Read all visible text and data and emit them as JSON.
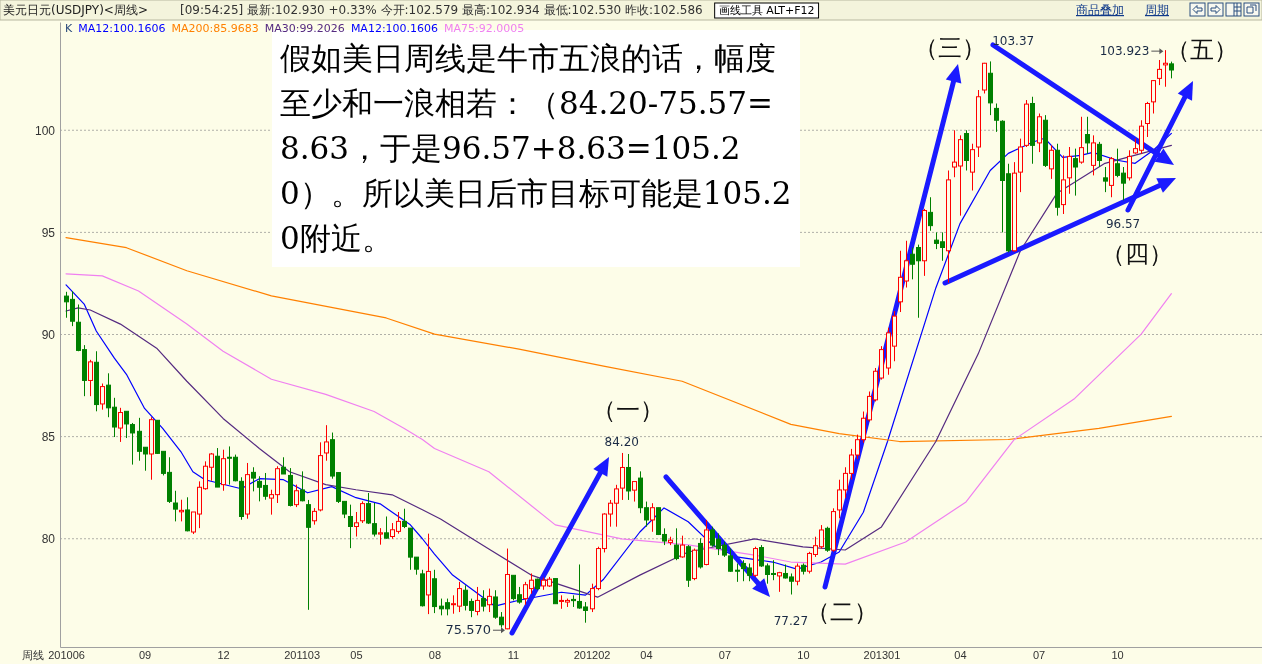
{
  "chart_data": {
    "type": "candlestick",
    "title": "美元日元(USDJPY)<周线>",
    "subtitle": "[09:54:25] 最新:102.930 +0.33% 今开:102.579 最高:102.934 最低:102.530 昨收:102.586",
    "xlabel": "周线",
    "xlim": [
      "2010-05-28",
      "2014-03-21"
    ],
    "ylim": [
      74.7,
      105.3
    ],
    "xticks": [
      {
        "value": "2010-06-04",
        "label": "201006"
      },
      {
        "value": "2010-09-03",
        "label": "09"
      },
      {
        "value": "2010-12-03",
        "label": "12"
      },
      {
        "value": "2011-03-04",
        "label": "201103"
      },
      {
        "value": "2011-05-06",
        "label": "05"
      },
      {
        "value": "2011-08-05",
        "label": "08"
      },
      {
        "value": "2011-11-04",
        "label": "11"
      },
      {
        "value": "2012-02-03",
        "label": "201202"
      },
      {
        "value": "2012-04-06",
        "label": "04"
      },
      {
        "value": "2012-07-06",
        "label": "07"
      },
      {
        "value": "2012-10-05",
        "label": "10"
      },
      {
        "value": "2013-01-04",
        "label": "201301"
      },
      {
        "value": "2013-04-05",
        "label": "04"
      },
      {
        "value": "2013-07-05",
        "label": "07"
      },
      {
        "value": "2013-10-04",
        "label": "10"
      }
    ],
    "yticks": [
      80,
      85,
      90,
      95,
      100
    ],
    "grid": "y",
    "legend": "top left",
    "x": [
      "2010-06-04",
      "2010-06-11",
      "2010-06-18",
      "2010-06-25",
      "2010-07-02",
      "2010-07-09",
      "2010-07-16",
      "2010-07-23",
      "2010-07-30",
      "2010-08-06",
      "2010-08-13",
      "2010-08-20",
      "2010-08-27",
      "2010-09-03",
      "2010-09-10",
      "2010-09-17",
      "2010-09-24",
      "2010-10-01",
      "2010-10-08",
      "2010-10-15",
      "2010-10-22",
      "2010-10-29",
      "2010-11-05",
      "2010-11-12",
      "2010-11-19",
      "2010-11-26",
      "2010-12-03",
      "2010-12-10",
      "2010-12-17",
      "2010-12-24",
      "2010-12-31",
      "2011-01-07",
      "2011-01-14",
      "2011-01-21",
      "2011-01-28",
      "2011-02-04",
      "2011-02-11",
      "2011-02-18",
      "2011-02-25",
      "2011-03-04",
      "2011-03-11",
      "2011-03-18",
      "2011-03-25",
      "2011-04-01",
      "2011-04-08",
      "2011-04-15",
      "2011-04-22",
      "2011-04-29",
      "2011-05-06",
      "2011-05-13",
      "2011-05-20",
      "2011-05-27",
      "2011-06-03",
      "2011-06-10",
      "2011-06-17",
      "2011-06-24",
      "2011-07-01",
      "2011-07-08",
      "2011-07-15",
      "2011-07-22",
      "2011-07-29",
      "2011-08-05",
      "2011-08-12",
      "2011-08-19",
      "2011-08-26",
      "2011-09-02",
      "2011-09-09",
      "2011-09-16",
      "2011-09-23",
      "2011-09-30",
      "2011-10-07",
      "2011-10-14",
      "2011-10-21",
      "2011-10-28",
      "2011-11-04",
      "2011-11-11",
      "2011-11-18",
      "2011-11-25",
      "2011-12-02",
      "2011-12-09",
      "2011-12-16",
      "2011-12-23",
      "2011-12-30",
      "2012-01-06",
      "2012-01-13",
      "2012-01-20",
      "2012-01-27",
      "2012-02-03",
      "2012-02-10",
      "2012-02-17",
      "2012-02-24",
      "2012-03-02",
      "2012-03-09",
      "2012-03-16",
      "2012-03-23",
      "2012-03-30",
      "2012-04-06",
      "2012-04-13",
      "2012-04-20",
      "2012-04-27",
      "2012-05-04",
      "2012-05-11",
      "2012-05-18",
      "2012-05-25",
      "2012-06-01",
      "2012-06-08",
      "2012-06-15",
      "2012-06-22",
      "2012-06-29",
      "2012-07-06",
      "2012-07-13",
      "2012-07-20",
      "2012-07-27",
      "2012-08-03",
      "2012-08-10",
      "2012-08-17",
      "2012-08-24",
      "2012-08-31",
      "2012-09-07",
      "2012-09-14",
      "2012-09-21",
      "2012-09-28",
      "2012-10-05",
      "2012-10-12",
      "2012-10-19",
      "2012-10-26",
      "2012-11-02",
      "2012-11-09",
      "2012-11-16",
      "2012-11-23",
      "2012-11-30",
      "2012-12-07",
      "2012-12-14",
      "2012-12-21",
      "2012-12-28",
      "2013-01-04",
      "2013-01-11",
      "2013-01-18",
      "2013-01-25",
      "2013-02-01",
      "2013-02-08",
      "2013-02-15",
      "2013-02-22",
      "2013-03-01",
      "2013-03-08",
      "2013-03-15",
      "2013-03-22",
      "2013-03-29",
      "2013-04-05",
      "2013-04-12",
      "2013-04-19",
      "2013-04-26",
      "2013-05-03",
      "2013-05-10",
      "2013-05-17",
      "2013-05-24",
      "2013-05-31",
      "2013-06-07",
      "2013-06-14",
      "2013-06-21",
      "2013-06-28",
      "2013-07-05",
      "2013-07-12",
      "2013-07-19",
      "2013-07-26",
      "2013-08-02",
      "2013-08-09",
      "2013-08-16",
      "2013-08-23",
      "2013-08-30",
      "2013-09-06",
      "2013-09-13",
      "2013-09-20",
      "2013-09-27",
      "2013-10-04",
      "2013-10-11",
      "2013-10-18",
      "2013-10-25",
      "2013-11-01",
      "2013-11-08",
      "2013-11-15",
      "2013-11-22",
      "2013-11-29",
      "2013-12-06"
    ],
    "ohlc": [
      [
        91.88,
        92.09,
        90.82,
        91.6
      ],
      [
        91.72,
        92.12,
        90.41,
        90.65
      ],
      [
        90.6,
        91.47,
        89.18,
        89.22
      ],
      [
        89.26,
        89.48,
        86.98,
        87.75
      ],
      [
        87.75,
        88.76,
        86.98,
        88.66
      ],
      [
        88.64,
        89.18,
        86.24,
        86.57
      ],
      [
        86.6,
        87.6,
        86.32,
        87.45
      ],
      [
        87.52,
        88.1,
        85.95,
        86.41
      ],
      [
        86.44,
        86.9,
        84.98,
        85.47
      ],
      [
        85.42,
        86.41,
        84.74,
        86.18
      ],
      [
        86.24,
        86.24,
        84.93,
        85.62
      ],
      [
        85.59,
        85.67,
        83.63,
        85.18
      ],
      [
        85.26,
        85.92,
        83.82,
        84.28
      ],
      [
        84.48,
        84.48,
        83.33,
        84.15
      ],
      [
        84.15,
        85.95,
        82.89,
        85.83
      ],
      [
        85.8,
        85.8,
        84.15,
        84.18
      ],
      [
        84.28,
        84.28,
        83.1,
        83.2
      ],
      [
        83.25,
        83.99,
        81.75,
        81.83
      ],
      [
        81.75,
        82.35,
        80.85,
        81.45
      ],
      [
        81.32,
        81.91,
        80.85,
        81.39
      ],
      [
        81.41,
        82.03,
        80.36,
        80.39
      ],
      [
        80.33,
        81.31,
        80.23,
        81.31
      ],
      [
        81.21,
        82.81,
        80.52,
        82.52
      ],
      [
        82.45,
        83.79,
        82.4,
        83.55
      ],
      [
        83.5,
        84.2,
        82.84,
        84.15
      ],
      [
        84.04,
        84.44,
        82.53,
        82.53
      ],
      [
        82.65,
        84.36,
        82.35,
        83.92
      ],
      [
        83.99,
        84.52,
        82.65,
        83.95
      ],
      [
        83.99,
        84.12,
        82.81,
        82.84
      ],
      [
        82.81,
        83.01,
        80.93,
        81.09
      ],
      [
        81.21,
        83.71,
        80.98,
        83.14
      ],
      [
        83.25,
        83.5,
        82.32,
        82.97
      ],
      [
        82.81,
        83.06,
        81.83,
        82.52
      ],
      [
        82.61,
        83.22,
        81.91,
        82.08
      ],
      [
        81.99,
        82.4,
        81.18,
        82.16
      ],
      [
        82.16,
        83.55,
        81.75,
        83.43
      ],
      [
        83.5,
        83.99,
        83.17,
        83.17
      ],
      [
        83.1,
        83.46,
        81.58,
        81.63
      ],
      [
        81.67,
        82.65,
        81.55,
        82.35
      ],
      [
        82.39,
        83.3,
        81.83,
        81.86
      ],
      [
        81.67,
        81.9,
        76.52,
        80.56
      ],
      [
        80.88,
        81.5,
        80.69,
        81.34
      ],
      [
        81.41,
        84.72,
        81.34,
        84.07
      ],
      [
        84.2,
        85.56,
        83.82,
        84.74
      ],
      [
        84.85,
        85.2,
        82.94,
        83.07
      ],
      [
        83.24,
        83.24,
        81.75,
        81.83
      ],
      [
        81.83,
        81.83,
        81.01,
        81.21
      ],
      [
        81.09,
        81.67,
        79.54,
        80.6
      ],
      [
        80.6,
        81.31,
        80.11,
        80.78
      ],
      [
        80.88,
        81.83,
        80.77,
        81.72
      ],
      [
        81.72,
        82.24,
        80.72,
        80.77
      ],
      [
        80.74,
        81.75,
        80.11,
        80.23
      ],
      [
        80.23,
        80.52,
        79.71,
        80.29
      ],
      [
        80.29,
        81.09,
        80.0,
        80.03
      ],
      [
        80.11,
        80.77,
        80.0,
        80.44
      ],
      [
        80.36,
        81.31,
        80.25,
        80.85
      ],
      [
        80.85,
        81.47,
        80.52,
        80.6
      ],
      [
        80.52,
        80.52,
        78.48,
        79.1
      ],
      [
        79.1,
        79.1,
        78.24,
        78.51
      ],
      [
        78.28,
        78.48,
        76.68,
        76.72
      ],
      [
        77.25,
        80.25,
        76.31,
        78.4
      ],
      [
        78.04,
        78.48,
        76.36,
        76.68
      ],
      [
        76.7,
        77.07,
        76.25,
        76.57
      ],
      [
        76.87,
        77.07,
        76.25,
        76.57
      ],
      [
        76.77,
        77.23,
        76.33,
        76.82
      ],
      [
        76.7,
        77.89,
        76.41,
        77.56
      ],
      [
        77.48,
        77.72,
        76.49,
        76.74
      ],
      [
        76.93,
        77.07,
        76.16,
        76.49
      ],
      [
        76.44,
        77.64,
        76.25,
        76.98
      ],
      [
        77.07,
        77.48,
        76.44,
        76.7
      ],
      [
        76.77,
        77.56,
        76.41,
        77.18
      ],
      [
        77.15,
        77.48,
        76.08,
        76.16
      ],
      [
        76.16,
        76.41,
        75.65,
        75.79
      ],
      [
        75.59,
        79.52,
        75.57,
        78.25
      ],
      [
        78.21,
        78.21,
        76.98,
        77.07
      ],
      [
        77.26,
        77.64,
        76.82,
        76.9
      ],
      [
        77.07,
        77.89,
        76.77,
        77.75
      ],
      [
        77.56,
        78.3,
        77.31,
        77.97
      ],
      [
        78.02,
        78.05,
        77.48,
        77.56
      ],
      [
        77.69,
        78.1,
        77.5,
        77.97
      ],
      [
        77.69,
        78.13,
        77.64,
        78.02
      ],
      [
        78.05,
        78.05,
        76.82,
        76.82
      ],
      [
        76.93,
        77.23,
        76.57,
        76.98
      ],
      [
        76.9,
        77.07,
        76.66,
        76.98
      ],
      [
        77.03,
        77.23,
        76.66,
        76.97
      ],
      [
        76.93,
        78.74,
        76.57,
        76.61
      ],
      [
        76.66,
        76.9,
        75.89,
        76.49
      ],
      [
        76.57,
        77.8,
        76.41,
        77.56
      ],
      [
        77.56,
        79.61,
        77.48,
        79.52
      ],
      [
        79.52,
        81.25,
        79.33,
        81.21
      ],
      [
        81.21,
        81.9,
        80.59,
        81.74
      ],
      [
        81.74,
        82.64,
        80.59,
        82.44
      ],
      [
        82.48,
        84.2,
        81.9,
        83.49
      ],
      [
        83.49,
        84.15,
        81.9,
        82.34
      ],
      [
        82.38,
        82.8,
        81.82,
        82.8
      ],
      [
        82.97,
        83.3,
        81.25,
        81.52
      ],
      [
        81.52,
        81.82,
        80.59,
        80.92
      ],
      [
        80.92,
        81.74,
        80.34,
        81.52
      ],
      [
        81.52,
        81.52,
        80.18,
        80.21
      ],
      [
        80.21,
        80.51,
        79.69,
        79.89
      ],
      [
        79.82,
        80.1,
        79.69,
        79.93
      ],
      [
        79.69,
        80.51,
        78.95,
        79.03
      ],
      [
        79.11,
        80.15,
        79.07,
        79.69
      ],
      [
        79.61,
        79.69,
        77.64,
        77.97
      ],
      [
        78.05,
        79.52,
        77.97,
        79.44
      ],
      [
        79.77,
        80.02,
        78.54,
        78.62
      ],
      [
        78.74,
        80.92,
        78.7,
        80.43
      ],
      [
        80.43,
        80.59,
        79.61,
        79.69
      ],
      [
        79.98,
        80.26,
        79.2,
        79.52
      ],
      [
        79.69,
        79.85,
        79.11,
        79.2
      ],
      [
        79.16,
        79.52,
        78.38,
        78.41
      ],
      [
        78.46,
        78.79,
        77.89,
        78.41
      ],
      [
        78.79,
        78.95,
        77.92,
        78.54
      ],
      [
        78.57,
        78.79,
        77.92,
        78.21
      ],
      [
        78.21,
        79.61,
        78.13,
        79.52
      ],
      [
        79.57,
        79.69,
        78.62,
        78.67
      ],
      [
        78.67,
        78.79,
        77.8,
        78.25
      ],
      [
        78.3,
        78.95,
        77.97,
        78.25
      ],
      [
        78.18,
        78.38,
        77.4,
        78.34
      ],
      [
        78.3,
        78.74,
        78.05,
        78.08
      ],
      [
        78.13,
        78.3,
        77.27,
        77.92
      ],
      [
        77.92,
        78.79,
        77.72,
        78.66
      ],
      [
        78.7,
        78.79,
        78.25,
        78.41
      ],
      [
        78.41,
        79.36,
        78.3,
        79.28
      ],
      [
        79.23,
        80.1,
        79.11,
        79.66
      ],
      [
        79.61,
        80.67,
        79.52,
        80.43
      ],
      [
        80.51,
        80.59,
        79.36,
        79.44
      ],
      [
        79.44,
        81.49,
        79.36,
        81.33
      ],
      [
        81.41,
        82.89,
        81.0,
        82.39
      ],
      [
        82.39,
        83.5,
        82.0,
        83.2
      ],
      [
        83.2,
        84.4,
        82.9,
        84.1
      ],
      [
        84.1,
        85.1,
        83.9,
        84.85
      ],
      [
        84.85,
        86.23,
        84.7,
        85.9
      ],
      [
        85.82,
        87.21,
        85.74,
        86.97
      ],
      [
        86.8,
        88.36,
        86.72,
        88.2
      ],
      [
        87.87,
        89.43,
        87.79,
        89.26
      ],
      [
        88.36,
        90.33,
        88.03,
        90.08
      ],
      [
        89.43,
        91.15,
        88.69,
        90.9
      ],
      [
        91.6,
        94.1,
        91.1,
        92.8
      ],
      [
        92.62,
        94.59,
        92.3,
        93.61
      ],
      [
        93.93,
        94.26,
        92.7,
        93.44
      ],
      [
        94.26,
        94.4,
        90.82,
        93.61
      ],
      [
        93.61,
        96.15,
        92.87,
        96.07
      ],
      [
        95.98,
        96.72,
        95.08,
        95.33
      ],
      [
        94.62,
        95.0,
        94.18,
        94.46
      ],
      [
        94.54,
        95.0,
        93.61,
        94.26
      ],
      [
        94.1,
        98.03,
        92.54,
        97.57
      ],
      [
        98.2,
        100.0,
        97.7,
        98.44
      ],
      [
        98.25,
        99.75,
        95.82,
        99.54
      ],
      [
        99.84,
        100.0,
        98.03,
        98.52
      ],
      [
        97.95,
        99.34,
        97.05,
        99.05
      ],
      [
        99.18,
        101.97,
        98.69,
        101.64
      ],
      [
        101.97,
        103.3,
        101.8,
        103.28
      ],
      [
        102.79,
        103.37,
        100.74,
        101.34
      ],
      [
        101.07,
        101.31,
        99.92,
        100.49
      ],
      [
        100.44,
        100.49,
        95.0,
        97.54
      ],
      [
        97.87,
        98.36,
        94.02,
        94.1
      ],
      [
        94.1,
        98.44,
        94.05,
        97.9
      ],
      [
        97.95,
        99.59,
        96.97,
        99.18
      ],
      [
        99.26,
        101.48,
        99.18,
        101.28
      ],
      [
        101.31,
        101.64,
        98.36,
        99.26
      ],
      [
        99.38,
        100.82,
        98.93,
        100.66
      ],
      [
        100.49,
        100.74,
        98.2,
        98.28
      ],
      [
        98.11,
        99.26,
        97.62,
        99.02
      ],
      [
        99.02,
        99.34,
        95.82,
        96.23
      ],
      [
        96.36,
        98.77,
        95.9,
        97.57
      ],
      [
        97.67,
        99.18,
        96.89,
        98.72
      ],
      [
        98.61,
        99.1,
        96.8,
        98.2
      ],
      [
        98.44,
        100.66,
        98.36,
        99.15
      ],
      [
        99.79,
        100.66,
        98.85,
        99.38
      ],
      [
        98.28,
        99.75,
        97.79,
        99.38
      ],
      [
        99.31,
        99.43,
        98.2,
        98.52
      ],
      [
        97.67,
        98.2,
        96.97,
        97.51
      ],
      [
        97.3,
        98.69,
        96.72,
        98.61
      ],
      [
        98.36,
        99.1,
        97.7,
        97.79
      ],
      [
        97.9,
        98.2,
        96.57,
        97.41
      ],
      [
        97.67,
        99.02,
        97.54,
        98.72
      ],
      [
        98.89,
        99.59,
        98.85,
        99.1
      ],
      [
        99.02,
        100.49,
        98.85,
        100.2
      ],
      [
        100.33,
        101.39,
        99.67,
        101.31
      ],
      [
        101.39,
        102.46,
        100.82,
        102.43
      ],
      [
        102.54,
        103.44,
        102.21,
        102.98
      ],
      [
        103.2,
        103.923,
        102.13,
        103.28
      ],
      [
        103.25,
        103.36,
        102.54,
        102.95
      ]
    ],
    "series": [
      {
        "name": "MA12:100.1606",
        "type": "line",
        "color": "#0000ff",
        "x": [
          "2010-06-04",
          "2010-06-25",
          "2010-07-09",
          "2010-07-30",
          "2010-08-13",
          "2010-09-03",
          "2010-09-24",
          "2010-10-15",
          "2010-10-29",
          "2010-11-12",
          "2010-12-24",
          "2011-01-14",
          "2011-02-11",
          "2011-03-11",
          "2011-04-08",
          "2011-05-06",
          "2011-06-03",
          "2011-07-08",
          "2011-07-22",
          "2011-08-05",
          "2011-08-26",
          "2011-10-14",
          "2011-11-11",
          "2011-12-30",
          "2012-01-27",
          "2012-02-17",
          "2012-03-30",
          "2012-04-27",
          "2012-05-25",
          "2012-06-22",
          "2012-07-20",
          "2012-08-31",
          "2012-09-28",
          "2012-10-26",
          "2012-11-16",
          "2012-12-14",
          "2013-01-11",
          "2013-03-08",
          "2013-04-05",
          "2013-05-10",
          "2013-05-31",
          "2013-06-28",
          "2013-07-12",
          "2013-08-02",
          "2013-08-23",
          "2013-09-06",
          "2013-10-04",
          "2013-10-25",
          "2013-11-15",
          "2013-12-06"
        ],
        "values": [
          92.43,
          91.49,
          90.17,
          88.84,
          88.05,
          86.38,
          85.4,
          84.27,
          83.28,
          82.89,
          82.45,
          82.94,
          82.89,
          82.25,
          82.55,
          82.01,
          81.71,
          80.68,
          80.0,
          79.25,
          78.22,
          76.7,
          76.99,
          77.38,
          77.24,
          78.02,
          80.33,
          81.51,
          80.83,
          79.7,
          79.11,
          78.86,
          78.51,
          78.86,
          79.35,
          81.3,
          84.76,
          92.28,
          95.43,
          98.03,
          98.87,
          99.41,
          99.61,
          98.67,
          98.77,
          98.92,
          98.53,
          98.38,
          99.02,
          99.85
        ]
      },
      {
        "name": "MA200:85.9683",
        "type": "line",
        "color": "#ff8000",
        "x": [
          "2010-06-04",
          "2010-08-13",
          "2010-10-22",
          "2011-01-28",
          "2011-06-10",
          "2011-08-05",
          "2011-11-11",
          "2012-02-17",
          "2012-05-18",
          "2012-09-21",
          "2012-11-16",
          "2013-01-25",
          "2013-05-31",
          "2013-09-13",
          "2013-12-06"
        ],
        "values": [
          94.74,
          94.25,
          93.12,
          91.89,
          90.81,
          90.02,
          89.28,
          88.45,
          87.71,
          85.6,
          85.15,
          84.76,
          84.86,
          85.4,
          85.99
        ]
      },
      {
        "name": "MA30:99.2026",
        "type": "line",
        "color": "#552a80",
        "x": [
          "2010-06-04",
          "2010-06-18",
          "2010-07-02",
          "2010-08-06",
          "2010-09-17",
          "2010-10-22",
          "2010-12-03",
          "2011-01-14",
          "2011-02-18",
          "2011-04-01",
          "2011-05-06",
          "2011-06-17",
          "2011-07-22",
          "2011-08-12",
          "2011-10-07",
          "2011-11-25",
          "2012-02-10",
          "2012-03-30",
          "2012-05-25",
          "2012-08-10",
          "2012-10-05",
          "2012-11-23",
          "2013-01-04",
          "2013-03-08",
          "2013-04-26",
          "2013-06-14",
          "2013-07-26",
          "2013-09-20",
          "2013-12-06"
        ],
        "values": [
          91.15,
          91.3,
          91.2,
          90.51,
          89.33,
          87.71,
          85.89,
          84.42,
          83.28,
          82.65,
          82.4,
          82.15,
          81.42,
          80.97,
          79.5,
          78.22,
          77.14,
          78.22,
          79.35,
          79.99,
          79.6,
          79.45,
          80.58,
          84.76,
          89.04,
          94.1,
          96.9,
          98.38,
          99.26
        ]
      },
      {
        "name": "MA75:92.0005",
        "type": "line",
        "color": "#f080f0",
        "x": [
          "2010-06-04",
          "2010-07-16",
          "2010-08-27",
          "2010-10-22",
          "2010-12-03",
          "2011-01-28",
          "2011-04-01",
          "2011-05-27",
          "2011-07-01",
          "2011-07-22",
          "2011-08-05",
          "2011-10-07",
          "2011-12-23",
          "2012-03-09",
          "2012-05-25",
          "2012-08-10",
          "2012-09-21",
          "2012-11-23",
          "2013-02-01",
          "2013-04-12",
          "2013-06-07",
          "2013-08-16",
          "2013-11-01",
          "2013-12-06"
        ],
        "values": [
          92.97,
          92.87,
          92.13,
          90.51,
          89.18,
          87.81,
          87.07,
          86.23,
          85.4,
          84.86,
          84.42,
          83.28,
          80.68,
          79.99,
          79.7,
          79.2,
          78.86,
          78.76,
          79.84,
          81.8,
          84.86,
          86.87,
          90.02,
          92.0
        ]
      }
    ],
    "annotations": [
      "（一）",
      {
        "text": "84.20",
        "x": "2012-03-09",
        "y": 84.2
      },
      {
        "text": "75.570",
        "x": "2011-10-28",
        "y": 75.57
      },
      {
        "text": "77.27",
        "x": "2012-09-21",
        "y": 77.27
      },
      "（二）",
      "（三）",
      {
        "text": "103.37",
        "x": "2013-05-10",
        "y": 103.37
      },
      "（四）",
      {
        "text": "96.57",
        "x": "2013-10-11",
        "y": 96.57
      },
      "（五）",
      {
        "text": "103.923",
        "x": "2013-11-29",
        "y": 103.923
      },
      "假如美日周线是牛市五浪的话，幅度至少和一浪相若：（84.20-75.57=8.63，于是96.57+8.63=105.20）。所以美日后市目标可能是105.20附近。",
      "K",
      "MA12:100.1606",
      "画线工具 ALT+F12",
      "商品叠加",
      "周期"
    ]
  }
}
